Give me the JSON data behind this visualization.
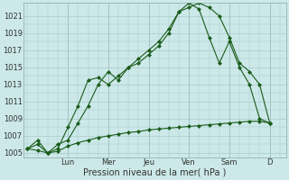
{
  "xlabel": "Pression niveau de la mer( hPa )",
  "bg_color": "#cce8e8",
  "line_color": "#1a5c1a",
  "grid_color": "#aacaca",
  "ylim": [
    1004.5,
    1022.5
  ],
  "yticks": [
    1005,
    1007,
    1009,
    1011,
    1013,
    1015,
    1017,
    1019,
    1021
  ],
  "day_labels": [
    "Lun",
    "Mer",
    "Jeu",
    "Ven",
    "Sam",
    "D"
  ],
  "day_positions": [
    2.0,
    4.0,
    6.0,
    8.0,
    10.0,
    12.0
  ],
  "xlim": [
    -0.2,
    12.8
  ],
  "series1_x": [
    0,
    0.5,
    1,
    1.5,
    2,
    2.5,
    3,
    3.5,
    4,
    4.5,
    5,
    5.5,
    6,
    6.5,
    7,
    7.5,
    8,
    8.5,
    9,
    9.5,
    10,
    10.5,
    11,
    11.5,
    12
  ],
  "series1_y": [
    1005.5,
    1006.0,
    1005.0,
    1006.0,
    1006.5,
    1008.5,
    1010.5,
    1013.0,
    1014.5,
    1013.5,
    1015.0,
    1015.5,
    1016.5,
    1017.5,
    1019.0,
    1021.5,
    1022.0,
    1022.5,
    1022.0,
    1021.0,
    1018.5,
    1015.5,
    1014.5,
    1013.0,
    1008.5
  ],
  "series2_x": [
    0,
    0.5,
    1,
    1.5,
    2,
    2.5,
    3,
    3.5,
    4,
    4.5,
    5,
    5.5,
    6,
    6.5,
    7,
    7.5,
    8,
    8.5,
    9,
    9.5,
    10,
    10.5,
    11,
    11.5,
    12
  ],
  "series2_y": [
    1005.5,
    1006.5,
    1005.0,
    1005.5,
    1008.0,
    1010.5,
    1013.5,
    1013.8,
    1013.0,
    1014.0,
    1015.0,
    1016.0,
    1017.0,
    1018.0,
    1019.5,
    1021.5,
    1022.5,
    1021.8,
    1018.5,
    1015.5,
    1018.0,
    1015.0,
    1013.0,
    1009.0,
    1008.5
  ],
  "series3_x": [
    0,
    0.5,
    1,
    1.5,
    2,
    2.5,
    3,
    3.5,
    4,
    4.5,
    5,
    5.5,
    6,
    6.5,
    7,
    7.5,
    8,
    8.5,
    9,
    9.5,
    10,
    10.5,
    11,
    11.5,
    12
  ],
  "series3_y": [
    1005.5,
    1005.3,
    1005.0,
    1005.2,
    1005.8,
    1006.2,
    1006.5,
    1006.8,
    1007.0,
    1007.2,
    1007.4,
    1007.5,
    1007.7,
    1007.8,
    1007.9,
    1008.0,
    1008.1,
    1008.2,
    1008.3,
    1008.4,
    1008.5,
    1008.6,
    1008.7,
    1008.7,
    1008.5
  ],
  "xlabel_fontsize": 7,
  "tick_fontsize": 6,
  "linewidth": 0.8,
  "markersize": 2.5
}
